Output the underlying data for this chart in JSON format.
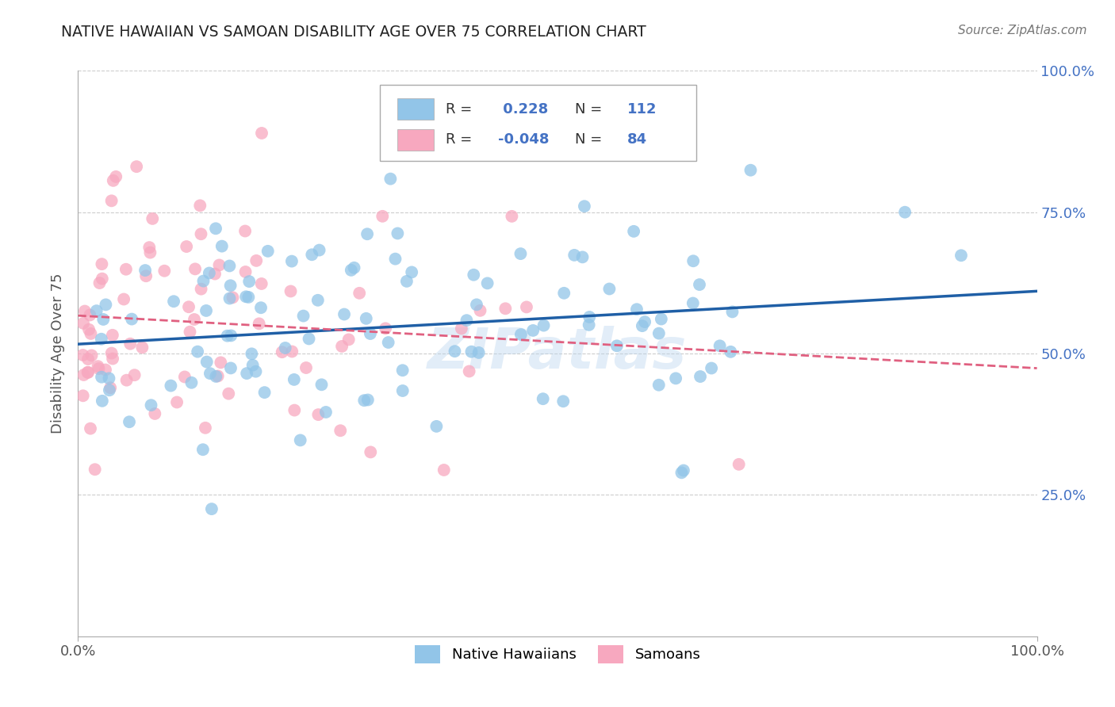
{
  "title": "NATIVE HAWAIIAN VS SAMOAN DISABILITY AGE OVER 75 CORRELATION CHART",
  "source": "Source: ZipAtlas.com",
  "ylabel": "Disability Age Over 75",
  "legend_label1": "Native Hawaiians",
  "legend_label2": "Samoans",
  "R1": 0.228,
  "N1": 112,
  "R2": -0.048,
  "N2": 84,
  "color_blue": "#92c5e8",
  "color_pink": "#f7a8bf",
  "line_blue": "#1f5fa6",
  "line_pink": "#e06080",
  "background": "#ffffff",
  "grid_color": "#cccccc",
  "watermark": "ZIPatlas"
}
